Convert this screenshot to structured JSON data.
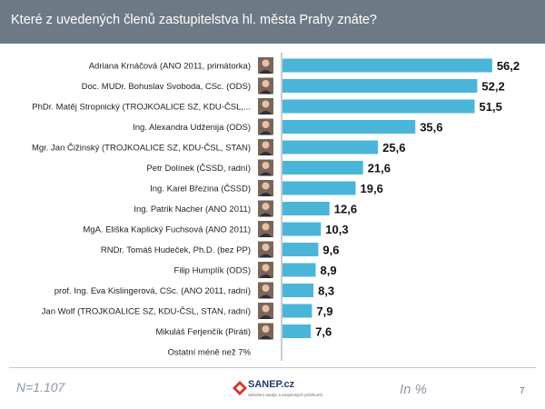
{
  "title": "Které z uvedených členů zastupitelstva hl. města Prahy znáte?",
  "footer": {
    "n": "N=1.107",
    "unit": "In %",
    "page": "7",
    "logo": "SANEP.cz",
    "logo_sub": "Sdružení analýz a empirických průzkumů"
  },
  "colors": {
    "header": "#6d7a86",
    "bar": "#4bb5d9"
  },
  "chart_data": {
    "type": "bar",
    "orientation": "horizontal",
    "categories": [
      "Adriana Krnáčová (ANO 2011, primátorka)",
      "Doc. MUDr. Bohuslav Svoboda, CSc. (ODS)",
      "PhDr. Matěj Stropnický (TROJKOALICE SZ, KDU-ČSL,...",
      "Ing. Alexandra Udženija (ODS)",
      "Mgr. Jan Čižinský (TROJKOALICE SZ, KDU-ČSL, STAN)",
      "Petr Dolínek (ČSSD, radní)",
      "Ing. Karel Březina (ČSSD)",
      "Ing. Patrik Nacher (ANO 2011)",
      "MgA. Eliška Kaplický Fuchsová (ANO 2011)",
      "RNDr. Tomáš Hudeček, Ph.D. (bez PP)",
      "Filip Humplík (ODS)",
      "prof. Ing. Eva Kislingerová, CSc. (ANO 2011, radní)",
      "Jan Wolf (TROJKOALICE SZ, KDU-ČSL, STAN, radní)",
      "Mikuláš Ferjenčík (Piráti)",
      "Ostatní méně než 7%"
    ],
    "values": [
      56.2,
      52.2,
      51.5,
      35.6,
      25.6,
      21.6,
      19.6,
      12.6,
      10.3,
      9.6,
      8.9,
      8.3,
      7.9,
      7.6,
      null
    ],
    "value_labels": [
      "56,2",
      "52,2",
      "51,5",
      "35,6",
      "25,6",
      "21,6",
      "19,6",
      "12,6",
      "10,3",
      "9,6",
      "8,9",
      "8,3",
      "7,9",
      "7,6",
      ""
    ],
    "xlim": [
      0,
      60
    ],
    "grid": false,
    "legend": "none"
  }
}
